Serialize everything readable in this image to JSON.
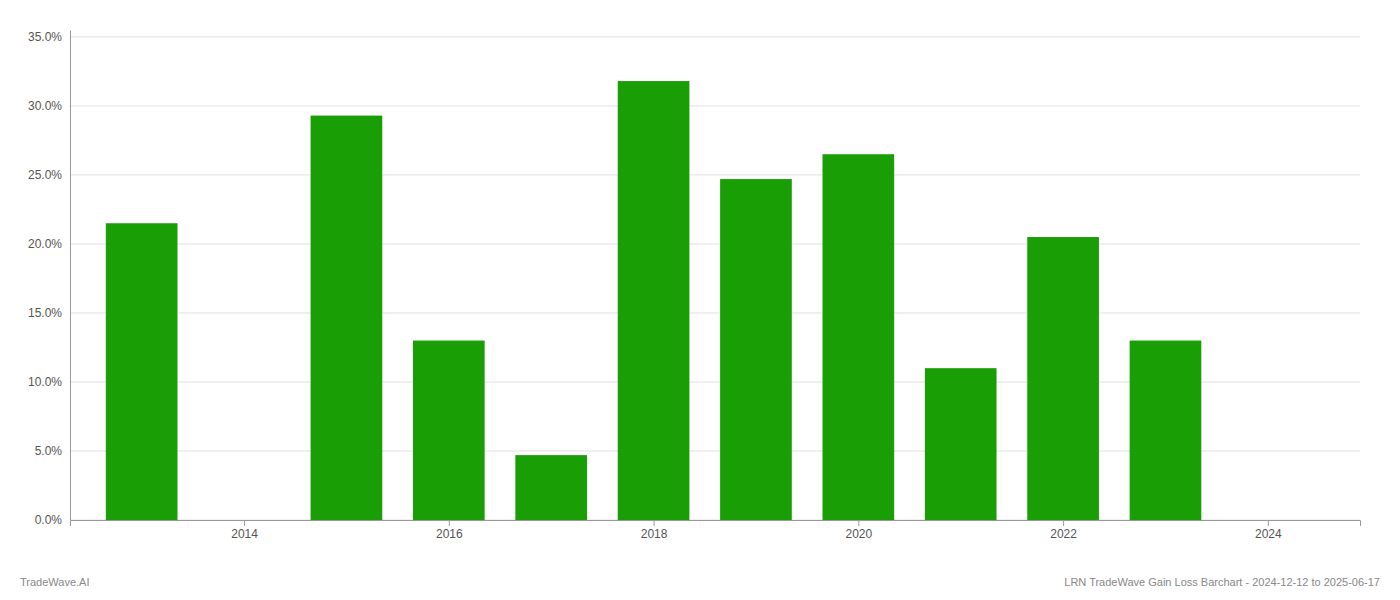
{
  "chart_data": {
    "type": "bar",
    "x": [
      2013,
      2015,
      2016,
      2017,
      2018,
      2019,
      2020,
      2021,
      2022,
      2023
    ],
    "values": [
      0.215,
      0.293,
      0.13,
      0.047,
      0.318,
      0.247,
      0.265,
      0.11,
      0.205,
      0.13
    ],
    "color": "#1a9e06",
    "xlim": [
      2012.3,
      2024.9
    ],
    "xticks": [
      2014,
      2016,
      2018,
      2020,
      2022,
      2024
    ],
    "ylim": [
      0.0,
      0.355
    ],
    "yticks": [
      {
        "value": 0.0,
        "label": "0.0%"
      },
      {
        "value": 0.05,
        "label": "5.0%"
      },
      {
        "value": 0.1,
        "label": "10.0%"
      },
      {
        "value": 0.15,
        "label": "15.0%"
      },
      {
        "value": 0.2,
        "label": "20.0%"
      },
      {
        "value": 0.25,
        "label": "25.0%"
      },
      {
        "value": 0.3,
        "label": "30.0%"
      },
      {
        "value": 0.35,
        "label": "35.0%"
      }
    ],
    "grid": true,
    "annotations": [
      {
        "text": "TradeWave.AI"
      },
      {
        "text": "LRN TradeWave Gain Loss Barchart - 2024-12-12 to 2025-06-17"
      }
    ]
  }
}
